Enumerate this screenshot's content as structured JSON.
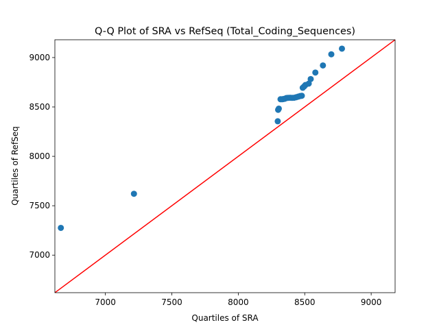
{
  "chart_data": {
    "type": "scatter",
    "title": "Q-Q Plot of SRA vs RefSeq (Total_Coding_Sequences)",
    "xlabel": "Quartiles of SRA",
    "ylabel": "Quartiles of RefSeq",
    "xlim": [
      6620,
      9180
    ],
    "ylim": [
      6620,
      9180
    ],
    "xticks": [
      7000,
      7500,
      8000,
      8500,
      9000
    ],
    "yticks": [
      7000,
      7500,
      8000,
      8500,
      9000
    ],
    "grid": false,
    "legend": "none",
    "point_color": "#1f77b4",
    "line_color": "#ff0000",
    "reference_line": {
      "from": [
        6620,
        6620
      ],
      "to": [
        9180,
        9180
      ]
    },
    "points": [
      {
        "x": 6665,
        "y": 7276
      },
      {
        "x": 7215,
        "y": 7621
      },
      {
        "x": 8297,
        "y": 8355
      },
      {
        "x": 8300,
        "y": 8471
      },
      {
        "x": 8305,
        "y": 8483
      },
      {
        "x": 8318,
        "y": 8578
      },
      {
        "x": 8330,
        "y": 8578
      },
      {
        "x": 8340,
        "y": 8580
      },
      {
        "x": 8350,
        "y": 8583
      },
      {
        "x": 8362,
        "y": 8590
      },
      {
        "x": 8375,
        "y": 8592
      },
      {
        "x": 8390,
        "y": 8593
      },
      {
        "x": 8405,
        "y": 8592
      },
      {
        "x": 8420,
        "y": 8593
      },
      {
        "x": 8435,
        "y": 8598
      },
      {
        "x": 8450,
        "y": 8604
      },
      {
        "x": 8465,
        "y": 8610
      },
      {
        "x": 8478,
        "y": 8613
      },
      {
        "x": 8485,
        "y": 8694
      },
      {
        "x": 8495,
        "y": 8707
      },
      {
        "x": 8505,
        "y": 8722
      },
      {
        "x": 8530,
        "y": 8736
      },
      {
        "x": 8545,
        "y": 8782
      },
      {
        "x": 8580,
        "y": 8848
      },
      {
        "x": 8637,
        "y": 8920
      },
      {
        "x": 8700,
        "y": 9033
      },
      {
        "x": 8780,
        "y": 9090
      }
    ]
  }
}
